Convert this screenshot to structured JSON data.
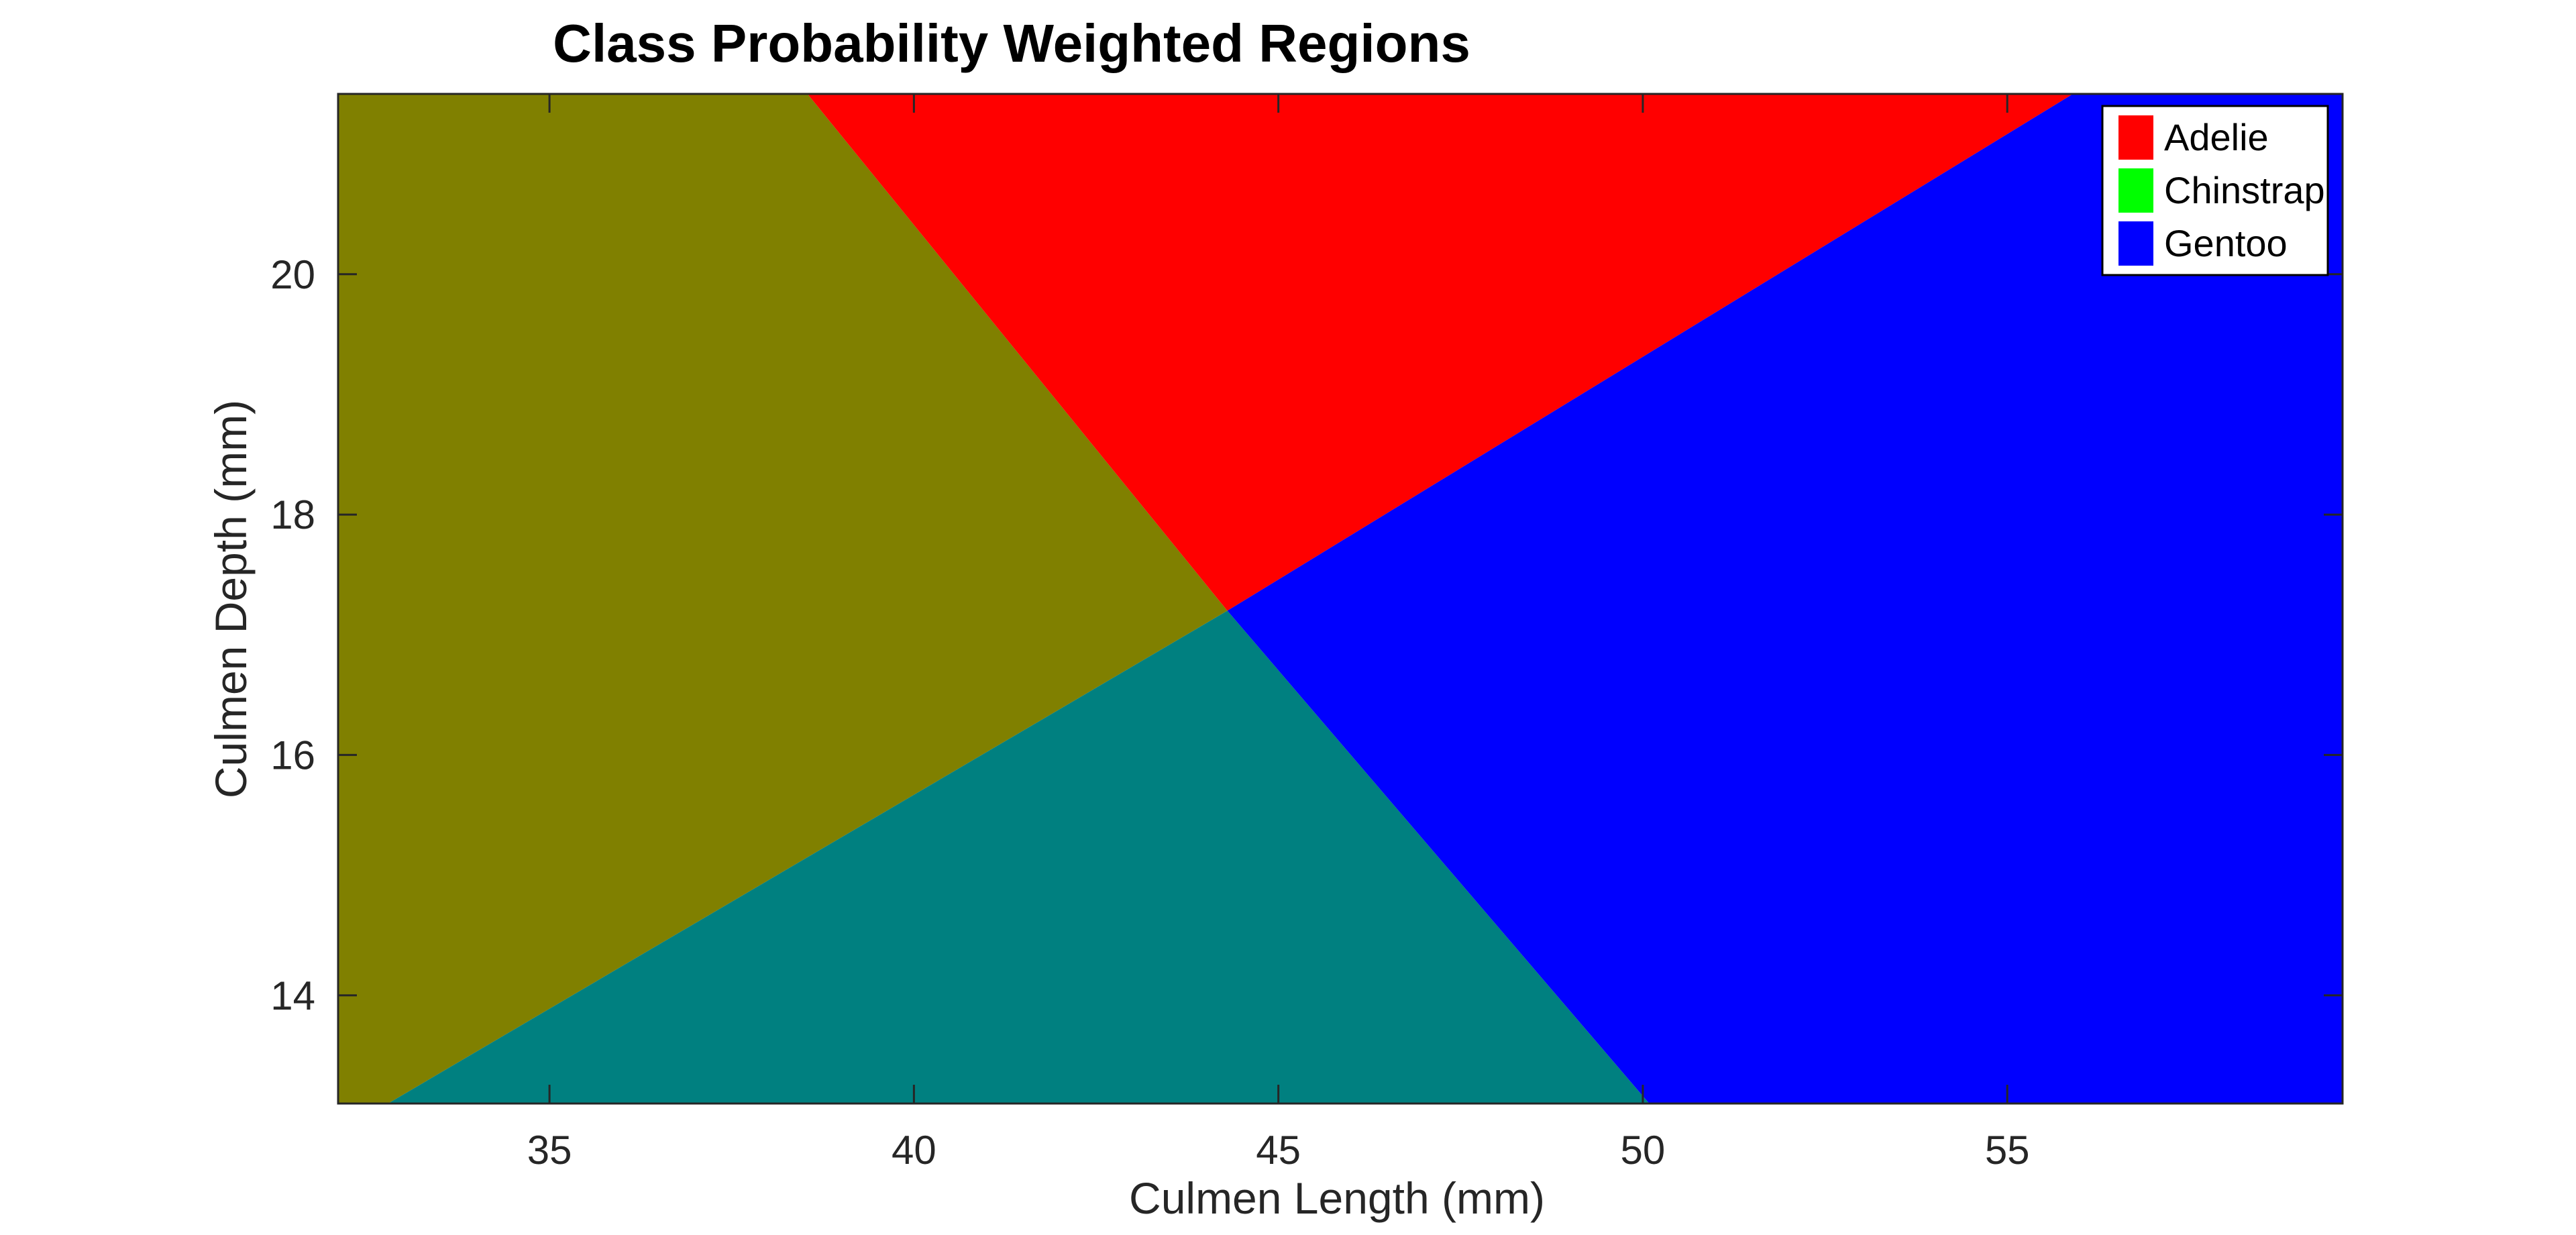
{
  "chart_data": {
    "type": "heatmap",
    "title": "Class Probability Weighted Regions",
    "xlabel": "Culmen Length (mm)",
    "ylabel": "Culmen Depth (mm)",
    "xlim": [
      32.1,
      59.6
    ],
    "ylim": [
      13.1,
      21.5
    ],
    "x_ticks": [
      35,
      40,
      45,
      50,
      55
    ],
    "y_ticks": [
      14,
      16,
      18,
      20
    ],
    "x_tick_labels": [
      "35",
      "40",
      "45",
      "50",
      "55"
    ],
    "y_tick_labels": [
      "14",
      "16",
      "18",
      "20"
    ],
    "grid": false,
    "legend_position": "top-right",
    "classes": [
      {
        "name": "Adelie",
        "color": "#ff0000"
      },
      {
        "name": "Chinstrap",
        "color": "#00ff00"
      },
      {
        "name": "Gentoo",
        "color": "#0000ff"
      }
    ],
    "blended_region_colors": {
      "adelie_chinstrap": "#808000",
      "chinstrap_gentoo": "#008080"
    }
  }
}
